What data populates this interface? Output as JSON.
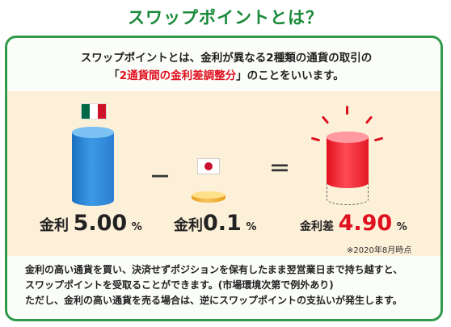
{
  "title": "スワップポイントとは？",
  "intro": {
    "line1": "スワップポイントとは、金利が異なる2種類の通貨の取引の",
    "line2_open": "「",
    "line2_highlight": "2通貨間の金利差調整分",
    "line2_rest": "」のことをいいます。"
  },
  "equation": {
    "left": {
      "label": "金利",
      "value": "5.00",
      "unit": "%",
      "currency_flag": "mexico-flag-icon"
    },
    "operator_minus": "－",
    "middle": {
      "label": "金利",
      "value": "0.1",
      "unit": "%",
      "currency_flag": "japan-flag-icon"
    },
    "operator_equals": "＝",
    "result": {
      "label": "金利差",
      "value": "4.90",
      "unit": "%"
    }
  },
  "note": "※2020年8月時点",
  "body": [
    "金利の高い通貨を買い、決済せずポジションを保有したまま翌営業日まで持ち越すと、",
    "スワップポイントを受取ることができます。(市場環境次第で例外あり)",
    "ただし、金利の高い通貨を売る場合は、逆にスワップポイントの支払いが発生します。"
  ],
  "colors": {
    "green": "#1a8a3a",
    "red": "#e0101e",
    "blue": "#2b7fd0",
    "gold": "#f0b030",
    "panel": "#fdf0d8"
  }
}
